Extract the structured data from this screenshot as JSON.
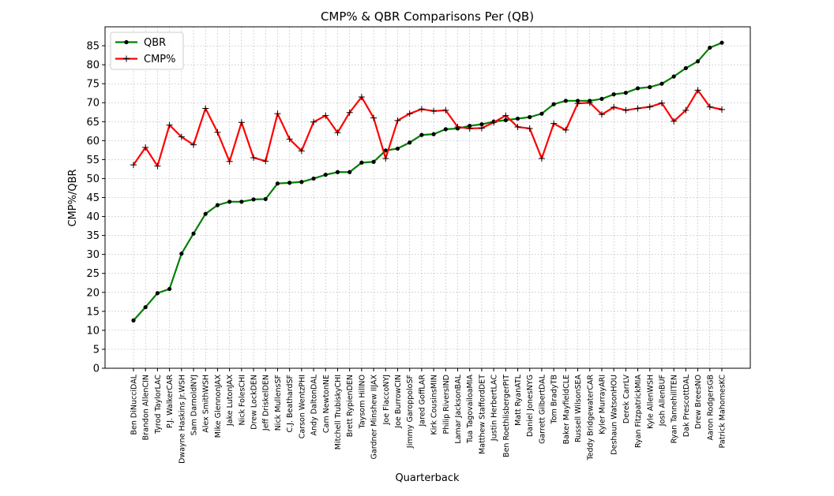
{
  "chart_data": {
    "type": "line",
    "title": "CMP% & QBR Comparisons Per (QB)",
    "xlabel": "Quarterback",
    "ylabel": "CMP%/QBR",
    "ylim": [
      0,
      90
    ],
    "yticks": [
      0,
      5,
      10,
      15,
      20,
      25,
      30,
      35,
      40,
      45,
      50,
      55,
      60,
      65,
      70,
      75,
      80,
      85
    ],
    "grid": true,
    "legend_position": "top-left",
    "categories": [
      "Ben DiNucciDAL",
      "Brandon AllenCIN",
      "Tyrod TaylorLAC",
      "P.J. WalkerCAR",
      "Dwayne Haskins Jr.WSH",
      "Sam DarnoldNYJ",
      "Alex SmithWSH",
      "Mike GlennonJAX",
      "Jake LutonJAX",
      "Nick FolesCHI",
      "Drew LockDEN",
      "Jeff DriskelDEN",
      "Nick MullensSF",
      "C.J. BeathardSF",
      "Carson WentzPHI",
      "Andy DaltonDAL",
      "Cam NewtonNE",
      "Mitchell TrubiskyCHI",
      "Brett RypienDEN",
      "Taysom HillNO",
      "Gardner Minshew IIJAX",
      "Joe FlaccoNYJ",
      "Joe BurrowCIN",
      "Jimmy GaroppoloSF",
      "Jared GoffLAR",
      "Kirk CousinsMIN",
      "Philip RiversIND",
      "Lamar JacksonBAL",
      "Tua TagovailoaMIA",
      "Matthew StaffordDET",
      "Justin HerbertLAC",
      "Ben RoethlisbergerPIT",
      "Matt RyanATL",
      "Daniel JonesNYG",
      "Garrett GilbertDAL",
      "Tom BradyTB",
      "Baker MayfieldCLE",
      "Russell WilsonSEA",
      "Teddy BridgewaterCAR",
      "Kyler MurrayARI",
      "Deshaun WatsonHOU",
      "Derek CarrLV",
      "Ryan FitzpatrickMIA",
      "Kyle AllenWSH",
      "Josh AllenBUF",
      "Ryan TannehillTEN",
      "Dak PrescottDAL",
      "Drew BreesNO",
      "Aaron RodgersGB",
      "Patrick MahomesKC"
    ],
    "series": [
      {
        "name": "QBR",
        "color": "#008000",
        "marker": "dot",
        "values": [
          12.6,
          16.1,
          19.8,
          20.9,
          30.2,
          35.5,
          40.7,
          43.0,
          43.9,
          43.9,
          44.5,
          44.6,
          48.7,
          48.9,
          49.1,
          50.0,
          51.0,
          51.7,
          51.7,
          54.2,
          54.4,
          57.4,
          57.9,
          59.5,
          61.5,
          61.7,
          63.0,
          63.2,
          63.9,
          64.3,
          65.0,
          65.4,
          65.8,
          66.2,
          67.1,
          69.6,
          70.5,
          70.5,
          70.5,
          71.0,
          72.2,
          72.6,
          73.8,
          74.1,
          75.0,
          76.9,
          79.1,
          80.9,
          84.5,
          85.8
        ]
      },
      {
        "name": "CMP%",
        "color": "#ff0000",
        "marker": "plus",
        "values": [
          53.6,
          58.2,
          53.3,
          64.1,
          61.0,
          58.9,
          68.5,
          62.2,
          54.5,
          64.8,
          55.5,
          54.6,
          67.1,
          60.4,
          57.3,
          64.9,
          66.6,
          62.1,
          67.4,
          71.5,
          66.0,
          55.3,
          65.3,
          67.1,
          68.3,
          67.8,
          68.0,
          63.6,
          63.2,
          63.3,
          64.8,
          66.6,
          63.6,
          63.2,
          55.3,
          64.5,
          62.8,
          69.8,
          70.0,
          66.9,
          68.8,
          68.0,
          68.5,
          68.9,
          69.9,
          65.1,
          68.0,
          73.3,
          68.9,
          68.2
        ]
      }
    ]
  }
}
